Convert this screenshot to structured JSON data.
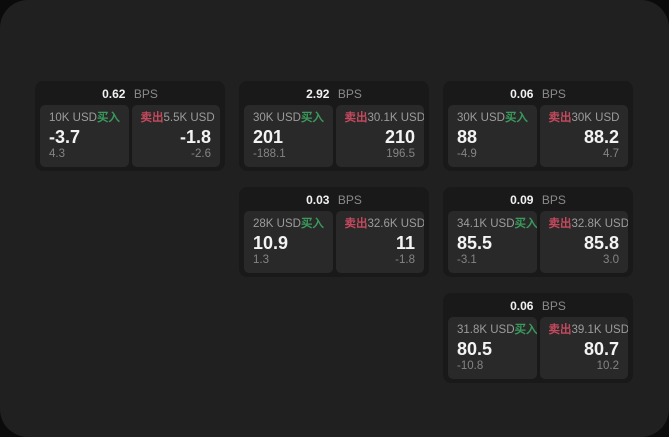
{
  "labels": {
    "bps_unit": "BPS",
    "buy": "买入",
    "sell": "卖出"
  },
  "colors": {
    "buy_green": "#3a9a5c",
    "sell_red": "#c4495e",
    "window_bg": "#202020",
    "card_bg": "#191919",
    "panel_bg": "#292929"
  },
  "cards": [
    {
      "bps": "0.62",
      "buy": {
        "amount": "10K USD",
        "price": "-3.7",
        "delta": "4.3"
      },
      "sell": {
        "amount": "5.5K USD",
        "price": "-1.8",
        "delta": "-2.6"
      }
    },
    {
      "bps": "2.92",
      "buy": {
        "amount": "30K USD",
        "price": "201",
        "delta": "-188.1"
      },
      "sell": {
        "amount": "30.1K USD",
        "price": "210",
        "delta": "196.5"
      }
    },
    {
      "bps": "0.06",
      "buy": {
        "amount": "30K USD",
        "price": "88",
        "delta": "-4.9"
      },
      "sell": {
        "amount": "30K USD",
        "price": "88.2",
        "delta": "4.7"
      }
    },
    {
      "bps": "0.03",
      "buy": {
        "amount": "28K USD",
        "price": "10.9",
        "delta": "1.3"
      },
      "sell": {
        "amount": "32.6K USD",
        "price": "11",
        "delta": "-1.8"
      }
    },
    {
      "bps": "0.09",
      "buy": {
        "amount": "34.1K USD",
        "price": "85.5",
        "delta": "-3.1"
      },
      "sell": {
        "amount": "32.8K USD",
        "price": "85.8",
        "delta": "3.0"
      }
    },
    {
      "bps": "0.06",
      "buy": {
        "amount": "31.8K USD",
        "price": "80.5",
        "delta": "-10.8"
      },
      "sell": {
        "amount": "39.1K USD",
        "price": "80.7",
        "delta": "10.2"
      }
    }
  ]
}
